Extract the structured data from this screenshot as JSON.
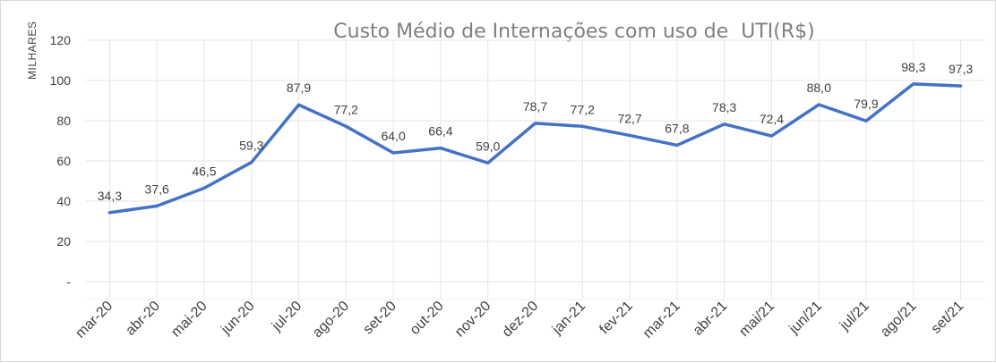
{
  "chart_data": {
    "type": "line",
    "title": "Custo Médio de Internações com uso de  UTI(R$)",
    "ylabel": "MILHARES",
    "xlabel": "",
    "ylim": [
      0,
      120
    ],
    "yticks": [
      "-",
      "20",
      "40",
      "60",
      "80",
      "100",
      "120"
    ],
    "categories": [
      "mar-20",
      "abr-20",
      "mai-20",
      "jun-20",
      "jul-20",
      "ago-20",
      "set-20",
      "out-20",
      "nov-20",
      "dez-20",
      "jan-21",
      "fev-21",
      "mar-21",
      "abr-21",
      "mai/21",
      "jun/21",
      "jul/21",
      "ago/21",
      "set/21"
    ],
    "series": [
      {
        "values": [
          34.3,
          37.6,
          46.5,
          59.3,
          87.9,
          77.2,
          64.0,
          66.4,
          59.0,
          78.7,
          77.2,
          72.7,
          67.8,
          78.3,
          72.4,
          88.0,
          79.9,
          98.3,
          97.3
        ],
        "labels": [
          "34,3",
          "37,6",
          "46,5",
          "59,3",
          "87,9",
          "77,2",
          "64,0",
          "66,4",
          "59,0",
          "78,7",
          "77,2",
          "72,7",
          "67,8",
          "78,3",
          "72,4",
          "88,0",
          "79,9",
          "98,3",
          "97,3"
        ],
        "color": "#4472c4"
      }
    ],
    "grid": "vertical and horizontal",
    "legend": "none"
  }
}
